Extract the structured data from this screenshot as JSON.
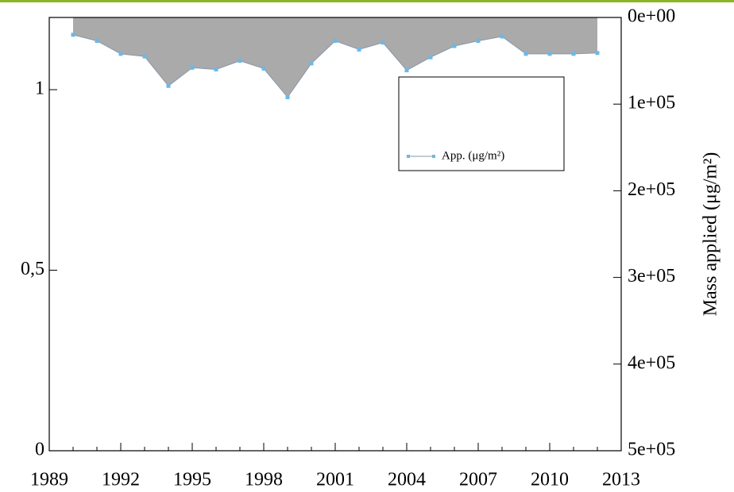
{
  "chart_data": {
    "type": "area",
    "y2label": "Mass applied (μg/m²)",
    "x": [
      1990,
      1991,
      1992,
      1993,
      1994,
      1995,
      1996,
      1997,
      1998,
      1999,
      2000,
      2001,
      2002,
      2003,
      2004,
      2005,
      2006,
      2007,
      2008,
      2009,
      2010,
      2011,
      2012
    ],
    "series": [
      {
        "name": "App. (μg/m²)",
        "color": "#6bb8e8",
        "fill": "#aaaaaa",
        "axis": "y2",
        "values": [
          20000,
          27000,
          42000,
          45000,
          79000,
          58000,
          60000,
          50000,
          59000,
          92000,
          53000,
          27000,
          37000,
          29000,
          61000,
          46000,
          33000,
          27000,
          22000,
          42000,
          42000,
          42000,
          41000
        ]
      }
    ],
    "xlim": [
      1989,
      2013
    ],
    "xticks": [
      1989,
      1992,
      1995,
      1998,
      2001,
      2004,
      2007,
      2010,
      2013
    ],
    "ylim": [
      0,
      1.2
    ],
    "yticks": [
      0,
      {
        "value": 0.5,
        "label": "0,5"
      },
      1
    ],
    "y2lim": [
      500000,
      0
    ],
    "y2ticks": [
      {
        "value": 0,
        "label": "0e+00"
      },
      {
        "value": 100000,
        "label": "1e+05"
      },
      {
        "value": 200000,
        "label": "2e+05"
      },
      {
        "value": 300000,
        "label": "3e+05"
      },
      {
        "value": 400000,
        "label": "4e+05"
      },
      {
        "value": 500000,
        "label": "5e+05"
      }
    ],
    "legend": "upper right"
  }
}
